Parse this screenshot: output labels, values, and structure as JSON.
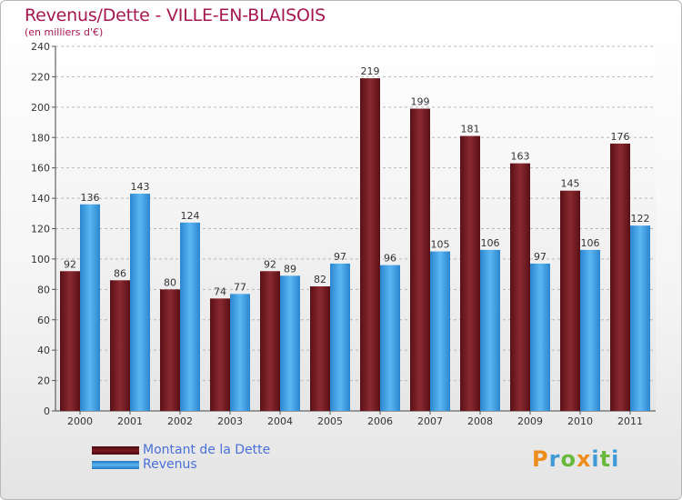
{
  "chart_data": {
    "type": "bar",
    "title": "Revenus/Dette - VILLE-EN-BLAISOIS",
    "subtitle": "(en milliers d'€)",
    "xlabel": "",
    "ylabel": "",
    "ylim": [
      0,
      240
    ],
    "yticks": [
      0,
      20,
      40,
      60,
      80,
      100,
      120,
      140,
      160,
      180,
      200,
      220,
      240
    ],
    "categories": [
      "2000",
      "2001",
      "2002",
      "2003",
      "2004",
      "2005",
      "2006",
      "2007",
      "2008",
      "2009",
      "2010",
      "2011"
    ],
    "series": [
      {
        "name": "Montant de la Dette",
        "color": "#7a1a22",
        "values": [
          92,
          86,
          80,
          74,
          92,
          82,
          219,
          199,
          181,
          163,
          145,
          176
        ]
      },
      {
        "name": "Revenus",
        "color": "#3e9fe4",
        "values": [
          136,
          143,
          124,
          77,
          89,
          97,
          96,
          105,
          106,
          97,
          106,
          122
        ]
      }
    ],
    "grid": true,
    "legend": "bottom-left"
  },
  "logo": {
    "letters": [
      {
        "char": "P",
        "color": "#ef8d1c"
      },
      {
        "char": "r",
        "color": "#3f9bd8"
      },
      {
        "char": "o",
        "color": "#69b93d"
      },
      {
        "char": "x",
        "color": "#ef8d1c"
      },
      {
        "char": "i",
        "color": "#3f9bd8"
      },
      {
        "char": "t",
        "color": "#69b93d"
      },
      {
        "char": "i",
        "color": "#3f9bd8"
      }
    ]
  }
}
